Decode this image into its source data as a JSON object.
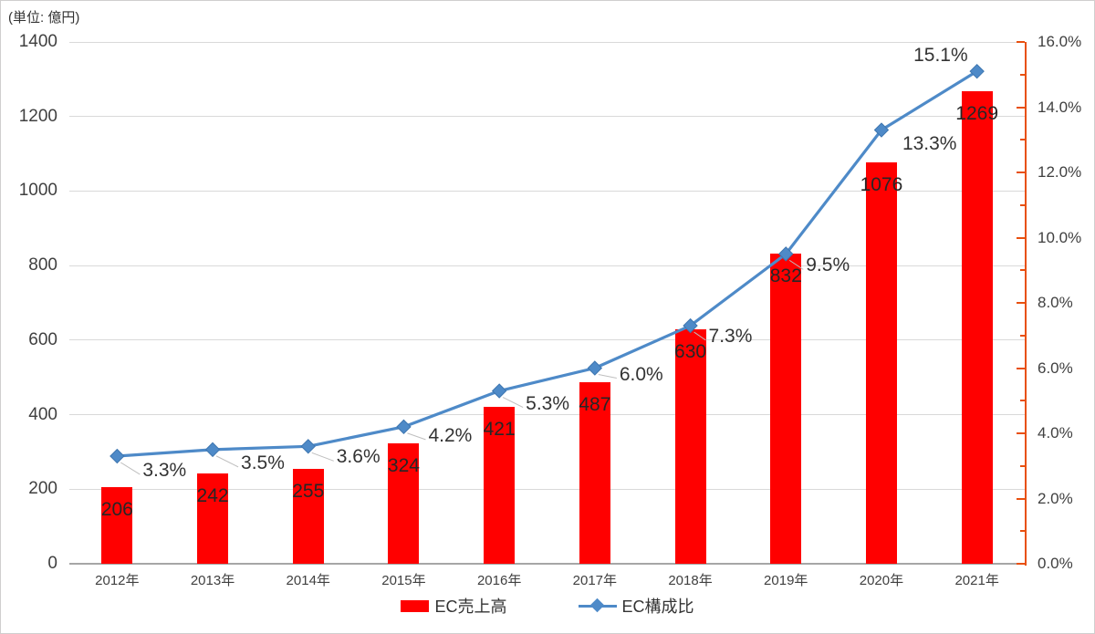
{
  "legend": {
    "bar_label": "EC売上高",
    "line_label": "EC構成比"
  },
  "chart_data": {
    "type": "bar",
    "subtype": "bar+line combo (dual axis)",
    "categories": [
      "2012年",
      "2013年",
      "2014年",
      "2015年",
      "2016年",
      "2017年",
      "2018年",
      "2019年",
      "2020年",
      "2021年"
    ],
    "series": [
      {
        "name": "EC売上高",
        "type": "bar",
        "axis": "left",
        "color": "#ff0000",
        "values": [
          206,
          242,
          255,
          324,
          421,
          487,
          630,
          832,
          1076,
          1269
        ],
        "data_labels": [
          "206",
          "242",
          "255",
          "324",
          "421",
          "487",
          "630",
          "832",
          "1076",
          "1269"
        ]
      },
      {
        "name": "EC構成比",
        "type": "line",
        "axis": "right",
        "color": "#4e8ac8",
        "marker": "diamond",
        "values": [
          3.3,
          3.5,
          3.6,
          4.2,
          5.3,
          6.0,
          7.3,
          9.5,
          13.3,
          15.1
        ],
        "data_labels": [
          "3.3%",
          "3.5%",
          "3.6%",
          "4.2%",
          "5.3%",
          "6.0%",
          "7.3%",
          "9.5%",
          "13.3%",
          "15.1%"
        ]
      }
    ],
    "left_axis": {
      "title": "(単位: 億円)",
      "min": 0,
      "max": 1400,
      "step": 200,
      "tick_labels": [
        "0",
        "200",
        "400",
        "600",
        "800",
        "1000",
        "1200",
        "1400"
      ]
    },
    "right_axis": {
      "min": 0,
      "max": 16,
      "step": 2,
      "tick_labels": [
        "0.0%",
        "2.0%",
        "4.0%",
        "6.0%",
        "8.0%",
        "10.0%",
        "12.0%",
        "14.0%",
        "16.0%"
      ],
      "color": "#e8500f"
    },
    "x_axis": {
      "tick_labels": [
        "2012年",
        "2013年",
        "2014年",
        "2015年",
        "2016年",
        "2017年",
        "2018年",
        "2019年",
        "2020年",
        "2021年"
      ]
    },
    "grid": true,
    "legend_position": "bottom"
  }
}
